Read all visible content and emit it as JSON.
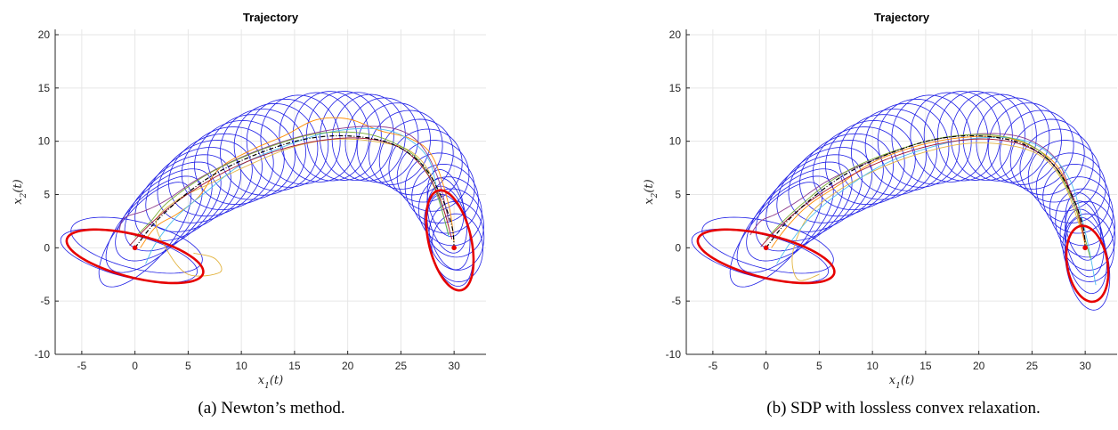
{
  "chart_data": [
    {
      "type": "line",
      "title": "Trajectory",
      "xlabel": "x_1(t)",
      "ylabel": "x_2(t)",
      "xlim": [
        -7.5,
        33
      ],
      "ylim": [
        -10,
        20.5
      ],
      "xticks": [
        "-5",
        "0",
        "5",
        "10",
        "15",
        "20",
        "25",
        "30"
      ],
      "xtick_values": [
        -5,
        0,
        5,
        10,
        15,
        20,
        25,
        30
      ],
      "yticks": [
        "-10",
        "-5",
        "0",
        "5",
        "10",
        "15",
        "20"
      ],
      "ytick_values": [
        -10,
        -5,
        0,
        5,
        10,
        15,
        20
      ],
      "grid": true,
      "caption": "(a) Newton’s method.",
      "reference_path": {
        "x": [
          0,
          2,
          5,
          8,
          12,
          16,
          20,
          24,
          27,
          28.8,
          29.8,
          30
        ],
        "y": [
          0,
          2.5,
          5.2,
          7.2,
          9.0,
          10.2,
          10.5,
          9.8,
          7.8,
          4.8,
          2.0,
          0
        ]
      },
      "start_point": [
        0,
        0
      ],
      "end_point": [
        30,
        0
      ],
      "start_ellipse": {
        "cx": 0,
        "cy": -0.8,
        "rx": 6.6,
        "ry": 2.0,
        "angle": -14
      },
      "end_ellipse": {
        "cx": 29.6,
        "cy": 0.7,
        "rx": 2.0,
        "ry": 4.8,
        "angle": 13
      },
      "tube_ellipse_count": 34,
      "sample_paths": [
        {
          "color": "#ff8c00",
          "x": [
            0.5,
            2,
            4,
            6,
            8,
            11,
            14,
            17,
            20,
            23,
            26,
            28,
            29.5,
            30
          ],
          "y": [
            0,
            2.0,
            3.2,
            4.8,
            7.5,
            9.2,
            10.5,
            12.0,
            12.1,
            11.0,
            10.2,
            8.5,
            4.0,
            0.5
          ]
        },
        {
          "color": "#e2b33f",
          "x": [
            5.5,
            7.5,
            8,
            5,
            3,
            2,
            4,
            7,
            11,
            15,
            19,
            23,
            26,
            28,
            29.5
          ],
          "y": [
            -0.5,
            -1.0,
            -2.3,
            -2.5,
            -0.2,
            2.5,
            4.5,
            6.0,
            7.9,
            9.5,
            10.2,
            9.9,
            9.0,
            6.5,
            2.0
          ]
        },
        {
          "color": "#8b3a8b",
          "x": [
            -1.5,
            -1,
            1,
            3,
            6,
            10,
            14,
            18,
            22,
            25,
            27,
            28.5,
            29.5
          ],
          "y": [
            1.5,
            2.8,
            3.5,
            4.5,
            6.5,
            8.5,
            10.0,
            11.0,
            11.4,
            11.0,
            9.5,
            6.5,
            2.5
          ]
        },
        {
          "color": "#4dbeee",
          "x": [
            1,
            2,
            4,
            7,
            10,
            14,
            18,
            22,
            25,
            27.5,
            28.5,
            29.5
          ],
          "y": [
            -1.5,
            0.5,
            3.0,
            5.5,
            7.8,
            9.5,
            10.8,
            11.2,
            10.6,
            8.5,
            5.0,
            1.0
          ]
        },
        {
          "color": "#77ac30",
          "x": [
            0,
            1.5,
            3,
            6,
            9,
            13,
            17,
            21,
            24,
            26.5,
            28.2,
            29.5
          ],
          "y": [
            1.0,
            2.5,
            4.2,
            6.4,
            8.0,
            9.6,
            10.7,
            10.8,
            10.0,
            8.4,
            5.5,
            1.2
          ]
        },
        {
          "color": "#a2142f",
          "x": [
            -0.5,
            1,
            3,
            5.5,
            9,
            13,
            17,
            21,
            24.5,
            27,
            28.7,
            29.8
          ],
          "y": [
            0.2,
            1.8,
            3.6,
            5.4,
            7.4,
            9.0,
            10.0,
            10.3,
            9.6,
            7.6,
            4.5,
            0.8
          ]
        }
      ]
    },
    {
      "type": "line",
      "title": "Trajectory",
      "xlabel": "x_1(t)",
      "ylabel": "x_2(t)",
      "xlim": [
        -7.5,
        33
      ],
      "ylim": [
        -10,
        20.5
      ],
      "xticks": [
        "-5",
        "0",
        "5",
        "10",
        "15",
        "20",
        "25",
        "30"
      ],
      "xtick_values": [
        -5,
        0,
        5,
        10,
        15,
        20,
        25,
        30
      ],
      "yticks": [
        "-10",
        "-5",
        "0",
        "5",
        "10",
        "15",
        "20"
      ],
      "ytick_values": [
        -10,
        -5,
        0,
        5,
        10,
        15,
        20
      ],
      "grid": true,
      "caption": "(b) SDP with lossless convex relaxation.",
      "reference_path": {
        "x": [
          0,
          2,
          5,
          8,
          12,
          16,
          20,
          24,
          27,
          28.8,
          29.8,
          30
        ],
        "y": [
          0,
          2.5,
          5.2,
          7.2,
          9.0,
          10.2,
          10.5,
          9.8,
          7.8,
          4.8,
          2.0,
          0
        ]
      },
      "start_point": [
        0,
        0
      ],
      "end_point": [
        30,
        0
      ],
      "start_ellipse": {
        "cx": 0,
        "cy": -0.8,
        "rx": 6.6,
        "ry": 2.0,
        "angle": -14
      },
      "end_ellipse": {
        "cx": 30.2,
        "cy": -1.5,
        "rx": 1.9,
        "ry": 3.6,
        "angle": 10
      },
      "tube_ellipse_count": 34,
      "sample_paths": [
        {
          "color": "#ff8c00",
          "x": [
            0.5,
            2,
            4,
            7,
            10,
            14,
            18,
            22,
            25,
            27.5,
            29,
            30
          ],
          "y": [
            0,
            2.0,
            4.0,
            6.0,
            8.0,
            9.5,
            10.3,
            10.4,
            9.5,
            7.5,
            4.0,
            0.3
          ]
        },
        {
          "color": "#e2b33f",
          "x": [
            5,
            3,
            2.5,
            4,
            7,
            11,
            15,
            19,
            23,
            26,
            28,
            29.5
          ],
          "y": [
            -2.5,
            -3.0,
            -0.5,
            3.0,
            5.5,
            7.6,
            9.0,
            9.8,
            9.6,
            8.5,
            6.0,
            2.0
          ]
        },
        {
          "color": "#8b3a8b",
          "x": [
            -1.5,
            -0.5,
            1,
            3,
            6,
            10,
            14,
            18,
            22,
            25,
            27.5,
            29
          ],
          "y": [
            1.2,
            2.5,
            3.2,
            4.4,
            6.4,
            8.2,
            9.7,
            10.5,
            10.7,
            10.0,
            8.0,
            4.0
          ]
        },
        {
          "color": "#4dbeee",
          "x": [
            1,
            2.5,
            4.5,
            7.5,
            11,
            15,
            19,
            23,
            26,
            28.5,
            30,
            31
          ],
          "y": [
            -1.5,
            0.8,
            3.2,
            5.6,
            7.8,
            9.3,
            10.2,
            10.3,
            9.3,
            6.5,
            1.5,
            -3.5
          ]
        },
        {
          "color": "#77ac30",
          "x": [
            0,
            1.5,
            3.5,
            6,
            9,
            13,
            17,
            21,
            24.5,
            27,
            29,
            30.5
          ],
          "y": [
            0.8,
            2.4,
            4.2,
            6.2,
            7.9,
            9.4,
            10.4,
            10.6,
            9.8,
            7.8,
            4.0,
            -1.0
          ]
        },
        {
          "color": "#a2142f",
          "x": [
            -0.5,
            1,
            3,
            5.5,
            9,
            13,
            17,
            21,
            24.5,
            27.2,
            29,
            30
          ],
          "y": [
            0.1,
            1.7,
            3.5,
            5.3,
            7.3,
            8.9,
            9.9,
            10.2,
            9.5,
            7.6,
            4.4,
            0.6
          ]
        }
      ]
    }
  ]
}
